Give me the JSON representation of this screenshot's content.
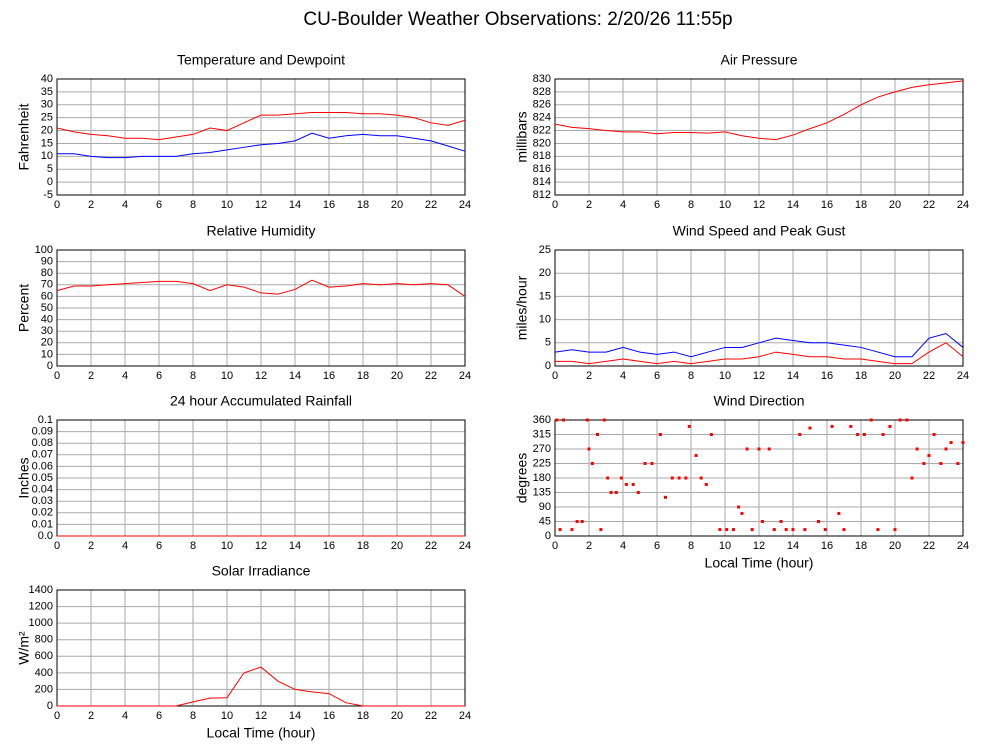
{
  "title": "CU-Boulder Weather Observations: 2/20/26 11:55p",
  "chart_data": [
    {
      "type": "line",
      "title": "Temperature and Dewpoint",
      "y_label": "Fahrenheit",
      "x": [
        0,
        1,
        2,
        3,
        4,
        5,
        6,
        7,
        8,
        9,
        10,
        11,
        12,
        13,
        14,
        15,
        16,
        17,
        18,
        19,
        20,
        21,
        22,
        23,
        24
      ],
      "series": [
        {
          "color": "#ff0000",
          "values": [
            21,
            19.5,
            18.5,
            18,
            17,
            17,
            16.5,
            17.5,
            18.5,
            21,
            20,
            23,
            26,
            26,
            26.5,
            27,
            27,
            27,
            26.5,
            26.5,
            26,
            25,
            23,
            22,
            24
          ]
        },
        {
          "color": "#0000ff",
          "values": [
            11,
            11,
            10,
            9.5,
            9.5,
            10,
            10,
            10,
            11,
            11.5,
            12.5,
            13.5,
            14.5,
            15,
            16,
            19,
            17,
            18,
            18.5,
            18,
            18,
            17,
            16,
            14,
            12
          ]
        }
      ],
      "xlim": [
        0,
        24
      ],
      "xticks": [
        0,
        2,
        4,
        6,
        8,
        10,
        12,
        14,
        16,
        18,
        20,
        22,
        24
      ],
      "ylim": [
        -5,
        40
      ],
      "yticks": [
        -5,
        0,
        5,
        10,
        15,
        20,
        25,
        30,
        35,
        40
      ],
      "grid": true
    },
    {
      "type": "line",
      "title": "Air Pressure",
      "y_label": "millibars",
      "x": [
        0,
        1,
        2,
        3,
        4,
        5,
        6,
        7,
        8,
        9,
        10,
        11,
        12,
        13,
        14,
        15,
        16,
        17,
        18,
        19,
        20,
        21,
        22,
        23,
        24
      ],
      "series": [
        {
          "color": "#ff0000",
          "values": [
            823,
            822.5,
            822.3,
            822,
            821.8,
            821.8,
            821.5,
            821.7,
            821.7,
            821.6,
            821.8,
            821.2,
            820.8,
            820.6,
            821.3,
            822.3,
            823.2,
            824.5,
            826,
            827.2,
            828,
            828.7,
            829.1,
            829.4,
            829.7
          ]
        }
      ],
      "xlim": [
        0,
        24
      ],
      "xticks": [
        0,
        2,
        4,
        6,
        8,
        10,
        12,
        14,
        16,
        18,
        20,
        22,
        24
      ],
      "ylim": [
        812,
        830
      ],
      "yticks": [
        812,
        814,
        816,
        818,
        820,
        822,
        824,
        826,
        828,
        830
      ],
      "grid": true
    },
    {
      "type": "line",
      "title": "Relative Humidity",
      "y_label": "Percent",
      "x": [
        0,
        1,
        2,
        3,
        4,
        5,
        6,
        7,
        8,
        9,
        10,
        11,
        12,
        13,
        14,
        15,
        16,
        17,
        18,
        19,
        20,
        21,
        22,
        23,
        24
      ],
      "series": [
        {
          "color": "#ff0000",
          "values": [
            65,
            69,
            69,
            70,
            71,
            72,
            73,
            73,
            71,
            65,
            70,
            68,
            63,
            62,
            66,
            74,
            68,
            69,
            71,
            70,
            71,
            70,
            71,
            70,
            60
          ]
        }
      ],
      "xlim": [
        0,
        24
      ],
      "xticks": [
        0,
        2,
        4,
        6,
        8,
        10,
        12,
        14,
        16,
        18,
        20,
        22,
        24
      ],
      "ylim": [
        0,
        100
      ],
      "yticks": [
        0,
        10,
        20,
        30,
        40,
        50,
        60,
        70,
        80,
        90,
        100
      ],
      "grid": true
    },
    {
      "type": "line",
      "title": "Wind Speed and Peak Gust",
      "y_label": "miles/hour",
      "x": [
        0,
        1,
        2,
        3,
        4,
        5,
        6,
        7,
        8,
        9,
        10,
        11,
        12,
        13,
        14,
        15,
        16,
        17,
        18,
        19,
        20,
        21,
        22,
        23,
        24
      ],
      "series": [
        {
          "color": "#0000ff",
          "values": [
            3,
            3.5,
            3,
            3,
            4,
            3,
            2.5,
            3,
            2,
            3,
            4,
            4,
            5,
            6,
            5.5,
            5,
            5,
            4.5,
            4,
            3,
            2,
            2,
            6,
            7,
            4
          ]
        },
        {
          "color": "#ff0000",
          "values": [
            1,
            1,
            0.5,
            1,
            1.5,
            1,
            0.5,
            1,
            0.5,
            1,
            1.5,
            1.5,
            2,
            3,
            2.5,
            2,
            2,
            1.5,
            1.5,
            1,
            0.5,
            0.5,
            3,
            5,
            2
          ]
        }
      ],
      "xlim": [
        0,
        24
      ],
      "xticks": [
        0,
        2,
        4,
        6,
        8,
        10,
        12,
        14,
        16,
        18,
        20,
        22,
        24
      ],
      "ylim": [
        0,
        25
      ],
      "yticks": [
        0,
        5,
        10,
        15,
        20,
        25
      ],
      "grid": true
    },
    {
      "type": "line",
      "title": "24 hour Accumulated Rainfall",
      "y_label": "Inches",
      "x": [
        0,
        24
      ],
      "series": [
        {
          "color": "#ff0000",
          "values": [
            0,
            0
          ]
        }
      ],
      "xlim": [
        0,
        24
      ],
      "xticks": [
        0,
        2,
        4,
        6,
        8,
        10,
        12,
        14,
        16,
        18,
        20,
        22,
        24
      ],
      "ylim": [
        0,
        0.1
      ],
      "yticks": [
        {
          "value": 0,
          "label": "0.0"
        },
        0.01,
        0.02,
        0.03,
        0.04,
        0.05,
        0.06,
        0.07,
        0.08,
        0.09,
        0.1
      ],
      "grid": true
    },
    {
      "type": "scatter",
      "title": "Wind Direction",
      "y_label": "degrees",
      "x_label": "Local Time (hour)",
      "x": [
        0.1,
        0.3,
        0.5,
        1,
        1.3,
        1.6,
        1.9,
        2,
        2.2,
        2.5,
        2.7,
        2.9,
        3.1,
        3.3,
        3.6,
        3.9,
        4.2,
        4.6,
        4.9,
        5.3,
        5.7,
        6.2,
        6.5,
        6.9,
        7.3,
        7.7,
        7.9,
        8.3,
        8.6,
        8.9,
        9.2,
        9.7,
        10.1,
        10.5,
        10.8,
        11,
        11.3,
        11.6,
        12,
        12.2,
        12.6,
        12.9,
        13.3,
        13.6,
        14,
        14.4,
        14.7,
        15,
        15.5,
        15.9,
        16.3,
        16.7,
        17,
        17.4,
        17.8,
        18.2,
        18.6,
        19,
        19.3,
        19.7,
        20,
        20.3,
        20.7,
        21,
        21.3,
        21.7,
        22,
        22.3,
        22.7,
        23,
        23.3,
        23.7,
        24
      ],
      "series": [
        {
          "color": "#ff0000",
          "values": [
            360,
            20,
            360,
            20,
            45,
            45,
            360,
            270,
            225,
            315,
            20,
            360,
            180,
            135,
            135,
            180,
            160,
            160,
            135,
            225,
            225,
            315,
            120,
            180,
            180,
            180,
            340,
            250,
            180,
            160,
            315,
            20,
            20,
            20,
            90,
            70,
            270,
            20,
            270,
            45,
            270,
            20,
            45,
            20,
            20,
            315,
            20,
            335,
            45,
            20,
            340,
            70,
            20,
            340,
            315,
            315,
            360,
            20,
            315,
            340,
            20,
            360,
            360,
            180,
            270,
            225,
            250,
            315,
            225,
            270,
            290,
            225,
            290
          ]
        }
      ],
      "xlim": [
        0,
        24
      ],
      "xticks": [
        0,
        2,
        4,
        6,
        8,
        10,
        12,
        14,
        16,
        18,
        20,
        22,
        24
      ],
      "ylim": [
        0,
        360
      ],
      "yticks": [
        0,
        45,
        90,
        135,
        180,
        225,
        270,
        315,
        360
      ],
      "grid": true
    },
    {
      "type": "line",
      "title": "Solar Irradiance",
      "y_label": "W/m²",
      "x_label": "Local Time (hour)",
      "x": [
        0,
        1,
        2,
        3,
        4,
        5,
        6,
        7,
        8,
        9,
        10,
        11,
        12,
        13,
        14,
        15,
        16,
        17,
        18,
        19,
        20,
        21,
        22,
        23,
        24
      ],
      "series": [
        {
          "color": "#ff0000",
          "values": [
            0,
            0,
            0,
            0,
            0,
            0,
            0,
            0,
            50,
            95,
            100,
            400,
            470,
            300,
            200,
            170,
            150,
            40,
            0,
            0,
            0,
            0,
            0,
            0,
            0
          ]
        }
      ],
      "xlim": [
        0,
        24
      ],
      "xticks": [
        0,
        2,
        4,
        6,
        8,
        10,
        12,
        14,
        16,
        18,
        20,
        22,
        24
      ],
      "ylim": [
        0,
        1400
      ],
      "yticks": [
        0,
        200,
        400,
        600,
        800,
        1000,
        1200,
        1400
      ],
      "grid": true
    }
  ]
}
